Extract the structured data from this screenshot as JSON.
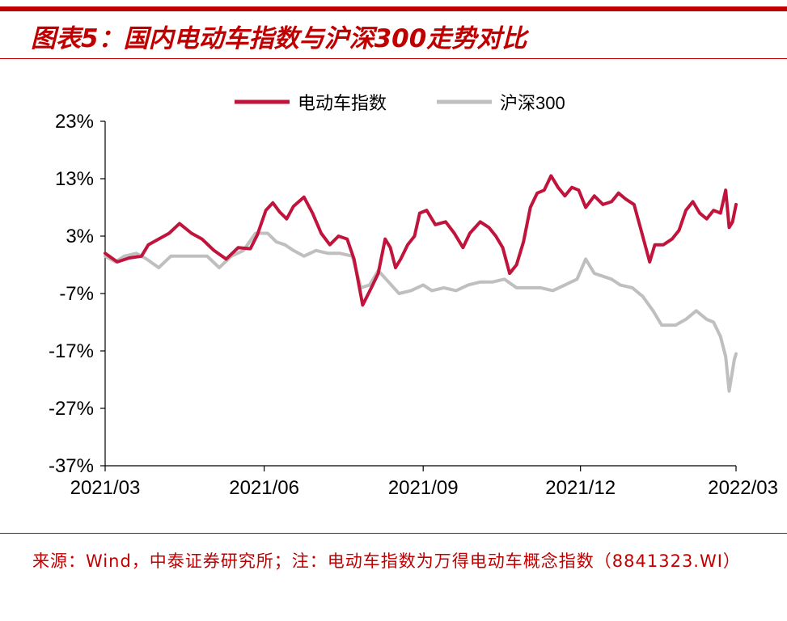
{
  "title": "图表5：国内电动车指数与沪深300走势对比",
  "source": "来源：Wind，中泰证券研究所；注：电动车指数为万得电动车概念指数（8841323.WI）",
  "colors": {
    "ev": "#c0143c",
    "hs300": "#bfbfbf",
    "brand": "#c00000"
  },
  "chart_data": {
    "type": "line",
    "title": "",
    "xlabel": "",
    "ylabel": "",
    "legend_position": "top",
    "ylim": [
      -37,
      23
    ],
    "yticks": [
      23,
      13,
      3,
      -7,
      -17,
      -27,
      -37
    ],
    "ytick_labels": [
      "23%",
      "13%",
      "3%",
      "-7%",
      "-17%",
      "-27%",
      "-37%"
    ],
    "xlim": [
      "2021-03-01",
      "2022-03-01"
    ],
    "xticks": [
      "2021-03-01",
      "2021-06-01",
      "2021-09-01",
      "2021-12-01",
      "2022-03-01"
    ],
    "xtick_labels": [
      "2021/03",
      "2021/06",
      "2021/09",
      "2021/12",
      "2022/03"
    ],
    "series": [
      {
        "name": "电动车指数",
        "color": "#c0143c",
        "points": [
          [
            "2021-03-01",
            0
          ],
          [
            "2021-03-08",
            -1.5
          ],
          [
            "2021-03-15",
            -0.8
          ],
          [
            "2021-03-22",
            -0.5
          ],
          [
            "2021-03-26",
            1.5
          ],
          [
            "2021-04-01",
            2.5
          ],
          [
            "2021-04-07",
            3.5
          ],
          [
            "2021-04-13",
            5.2
          ],
          [
            "2021-04-20",
            3.5
          ],
          [
            "2021-04-26",
            2.5
          ],
          [
            "2021-05-03",
            0.5
          ],
          [
            "2021-05-10",
            -1.0
          ],
          [
            "2021-05-17",
            1.0
          ],
          [
            "2021-05-24",
            0.8
          ],
          [
            "2021-05-28",
            3.2
          ],
          [
            "2021-06-02",
            7.5
          ],
          [
            "2021-06-06",
            8.8
          ],
          [
            "2021-06-10",
            7.2
          ],
          [
            "2021-06-14",
            6.0
          ],
          [
            "2021-06-18",
            8.2
          ],
          [
            "2021-06-24",
            9.8
          ],
          [
            "2021-06-29",
            7.0
          ],
          [
            "2021-07-04",
            3.5
          ],
          [
            "2021-07-09",
            1.5
          ],
          [
            "2021-07-14",
            3.0
          ],
          [
            "2021-07-19",
            2.5
          ],
          [
            "2021-07-23",
            -1.0
          ],
          [
            "2021-07-28",
            -9.0
          ],
          [
            "2021-08-02",
            -6.0
          ],
          [
            "2021-08-06",
            -3.5
          ],
          [
            "2021-08-10",
            2.5
          ],
          [
            "2021-08-13",
            1.0
          ],
          [
            "2021-08-16",
            -2.5
          ],
          [
            "2021-08-19",
            -1.0
          ],
          [
            "2021-08-23",
            1.5
          ],
          [
            "2021-08-27",
            3.0
          ],
          [
            "2021-08-30",
            7.0
          ],
          [
            "2021-09-03",
            7.5
          ],
          [
            "2021-09-08",
            5.0
          ],
          [
            "2021-09-14",
            5.5
          ],
          [
            "2021-09-19",
            3.5
          ],
          [
            "2021-09-24",
            1.0
          ],
          [
            "2021-09-28",
            3.5
          ],
          [
            "2021-10-04",
            5.5
          ],
          [
            "2021-10-09",
            4.5
          ],
          [
            "2021-10-13",
            3.0
          ],
          [
            "2021-10-17",
            1.0
          ],
          [
            "2021-10-21",
            -3.5
          ],
          [
            "2021-10-25",
            -2.0
          ],
          [
            "2021-10-29",
            2.0
          ],
          [
            "2021-11-02",
            8.0
          ],
          [
            "2021-11-06",
            10.5
          ],
          [
            "2021-11-10",
            11.0
          ],
          [
            "2021-11-14",
            13.5
          ],
          [
            "2021-11-18",
            11.5
          ],
          [
            "2021-11-22",
            10.0
          ],
          [
            "2021-11-26",
            11.5
          ],
          [
            "2021-11-30",
            11.0
          ],
          [
            "2021-12-04",
            8.0
          ],
          [
            "2021-12-09",
            10.0
          ],
          [
            "2021-12-14",
            8.5
          ],
          [
            "2021-12-19",
            9.0
          ],
          [
            "2021-12-23",
            10.5
          ],
          [
            "2021-12-27",
            9.5
          ],
          [
            "2022-01-01",
            8.5
          ],
          [
            "2022-01-06",
            3.0
          ],
          [
            "2022-01-10",
            -1.5
          ],
          [
            "2022-01-13",
            1.5
          ],
          [
            "2022-01-18",
            1.5
          ],
          [
            "2022-01-23",
            2.5
          ],
          [
            "2022-01-27",
            4.0
          ],
          [
            "2022-01-31",
            7.5
          ],
          [
            "2022-02-04",
            9.0
          ],
          [
            "2022-02-08",
            7.0
          ],
          [
            "2022-02-12",
            6.0
          ],
          [
            "2022-02-16",
            7.5
          ],
          [
            "2022-02-20",
            7.0
          ],
          [
            "2022-02-23",
            11.0
          ],
          [
            "2022-02-25",
            4.5
          ],
          [
            "2022-02-27",
            5.5
          ],
          [
            "2022-03-01",
            8.5
          ]
        ]
      },
      {
        "name": "沪深300",
        "color": "#bfbfbf",
        "points": [
          [
            "2021-03-01",
            -0.5
          ],
          [
            "2021-03-07",
            -1.5
          ],
          [
            "2021-03-12",
            -0.5
          ],
          [
            "2021-03-19",
            0.0
          ],
          [
            "2021-03-25",
            -1.0
          ],
          [
            "2021-04-01",
            -2.5
          ],
          [
            "2021-04-08",
            -0.5
          ],
          [
            "2021-04-15",
            -0.5
          ],
          [
            "2021-04-22",
            -0.5
          ],
          [
            "2021-04-29",
            -0.5
          ],
          [
            "2021-05-06",
            -2.5
          ],
          [
            "2021-05-13",
            -0.5
          ],
          [
            "2021-05-20",
            0.5
          ],
          [
            "2021-05-27",
            3.5
          ],
          [
            "2021-06-03",
            3.5
          ],
          [
            "2021-06-08",
            2.0
          ],
          [
            "2021-06-13",
            1.5
          ],
          [
            "2021-06-18",
            0.5
          ],
          [
            "2021-06-24",
            -0.5
          ],
          [
            "2021-07-01",
            0.5
          ],
          [
            "2021-07-08",
            0.0
          ],
          [
            "2021-07-15",
            0.0
          ],
          [
            "2021-07-22",
            -0.5
          ],
          [
            "2021-07-27",
            -6.0
          ],
          [
            "2021-08-01",
            -5.5
          ],
          [
            "2021-08-06",
            -3.0
          ],
          [
            "2021-08-12",
            -5.0
          ],
          [
            "2021-08-18",
            -7.0
          ],
          [
            "2021-08-25",
            -6.5
          ],
          [
            "2021-09-01",
            -5.5
          ],
          [
            "2021-09-06",
            -6.5
          ],
          [
            "2021-09-13",
            -6.0
          ],
          [
            "2021-09-20",
            -6.5
          ],
          [
            "2021-09-27",
            -5.5
          ],
          [
            "2021-10-04",
            -5.0
          ],
          [
            "2021-10-11",
            -5.0
          ],
          [
            "2021-10-18",
            -4.5
          ],
          [
            "2021-10-25",
            -6.0
          ],
          [
            "2021-11-01",
            -6.0
          ],
          [
            "2021-11-08",
            -6.0
          ],
          [
            "2021-11-15",
            -6.5
          ],
          [
            "2021-11-22",
            -5.5
          ],
          [
            "2021-11-29",
            -4.5
          ],
          [
            "2021-12-04",
            -1.0
          ],
          [
            "2021-12-09",
            -3.5
          ],
          [
            "2021-12-14",
            -4.0
          ],
          [
            "2021-12-19",
            -4.5
          ],
          [
            "2021-12-24",
            -5.5
          ],
          [
            "2021-12-31",
            -6.0
          ],
          [
            "2022-01-06",
            -7.5
          ],
          [
            "2022-01-12",
            -10.0
          ],
          [
            "2022-01-17",
            -12.5
          ],
          [
            "2022-01-25",
            -12.5
          ],
          [
            "2022-01-31",
            -11.5
          ],
          [
            "2022-02-06",
            -10.0
          ],
          [
            "2022-02-12",
            -11.5
          ],
          [
            "2022-02-16",
            -12.0
          ],
          [
            "2022-02-20",
            -14.5
          ],
          [
            "2022-02-23",
            -18.0
          ],
          [
            "2022-02-25",
            -24.0
          ],
          [
            "2022-02-28",
            -18.5
          ],
          [
            "2022-03-01",
            -17.5
          ]
        ]
      }
    ]
  }
}
